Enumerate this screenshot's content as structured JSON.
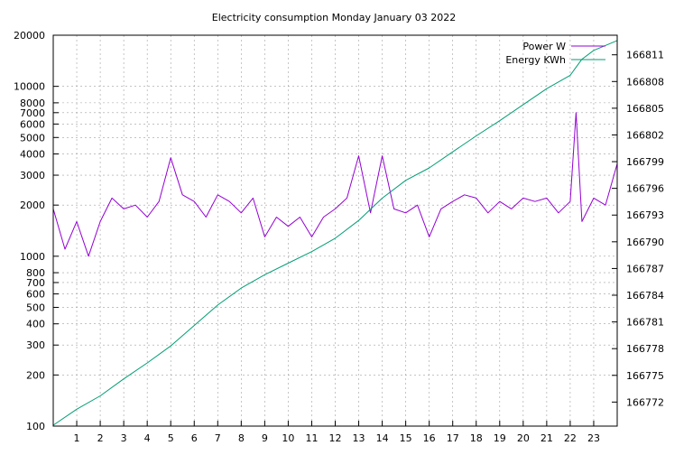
{
  "chart_data": {
    "type": "line",
    "title": "Electricity consumption Monday January 03 2022",
    "xlabel": "",
    "ylabel": "",
    "y2label": "",
    "grid": true,
    "legend_placement": "top-right",
    "x_range": [
      0,
      24
    ],
    "x_ticks": [
      1,
      2,
      3,
      4,
      5,
      6,
      7,
      8,
      9,
      10,
      11,
      12,
      13,
      14,
      15,
      16,
      17,
      18,
      19,
      20,
      21,
      22,
      23
    ],
    "y_scale": "log",
    "y_range": [
      100,
      20000
    ],
    "y_ticks": [
      100,
      200,
      300,
      400,
      500,
      600,
      700,
      800,
      1000,
      2000,
      3000,
      4000,
      5000,
      6000,
      7000,
      8000,
      10000,
      20000
    ],
    "y2_range": [
      166769.3,
      166813.2
    ],
    "y2_ticks": [
      166772,
      166775,
      166778,
      166781,
      166784,
      166787,
      166790,
      166793,
      166796,
      166799,
      166802,
      166805,
      166808,
      166811
    ],
    "series": [
      {
        "name": "Power W",
        "axis": "left",
        "color": "#9400d3",
        "x": [
          0.0,
          0.5,
          1.0,
          1.5,
          2.0,
          2.5,
          3.0,
          3.5,
          4.0,
          4.5,
          5.0,
          5.5,
          6.0,
          6.5,
          7.0,
          7.5,
          8.0,
          8.5,
          9.0,
          9.5,
          10.0,
          10.5,
          11.0,
          11.5,
          12.0,
          12.5,
          13.0,
          13.5,
          14.0,
          14.5,
          15.0,
          15.5,
          16.0,
          16.5,
          17.0,
          17.5,
          18.0,
          18.5,
          19.0,
          19.5,
          20.0,
          20.5,
          21.0,
          21.5,
          22.0,
          22.25,
          22.5,
          23.0,
          23.5,
          24.0
        ],
        "values": [
          1900,
          1100,
          1600,
          1000,
          1600,
          2200,
          1900,
          2000,
          1700,
          2100,
          3800,
          2300,
          2100,
          1700,
          2300,
          2100,
          1800,
          2200,
          1300,
          1700,
          1500,
          1700,
          1300,
          1700,
          1900,
          2200,
          3900,
          1800,
          3900,
          1900,
          1800,
          2000,
          1300,
          1900,
          2100,
          2300,
          2200,
          1800,
          2100,
          1900,
          2200,
          2100,
          2200,
          1800,
          2100,
          7000,
          1600,
          2200,
          2000,
          3500
        ]
      },
      {
        "name": "Energy KWh",
        "axis": "right",
        "color": "#009e73",
        "x": [
          0.0,
          1.0,
          2.0,
          3.0,
          4.0,
          5.0,
          6.0,
          7.0,
          8.0,
          9.0,
          10.0,
          11.0,
          12.0,
          13.0,
          14.0,
          15.0,
          16.0,
          17.0,
          18.0,
          19.0,
          20.0,
          21.0,
          22.0,
          22.5,
          23.0,
          24.0
        ],
        "values": [
          166769.4,
          166771.2,
          166772.7,
          166774.6,
          166776.4,
          166778.3,
          166780.6,
          166782.9,
          166784.8,
          166786.3,
          166787.6,
          166788.9,
          166790.4,
          166792.4,
          166794.9,
          166796.9,
          166798.3,
          166800.1,
          166801.9,
          166803.6,
          166805.4,
          166807.2,
          166808.7,
          166810.5,
          166811.5,
          166812.6
        ]
      }
    ]
  }
}
